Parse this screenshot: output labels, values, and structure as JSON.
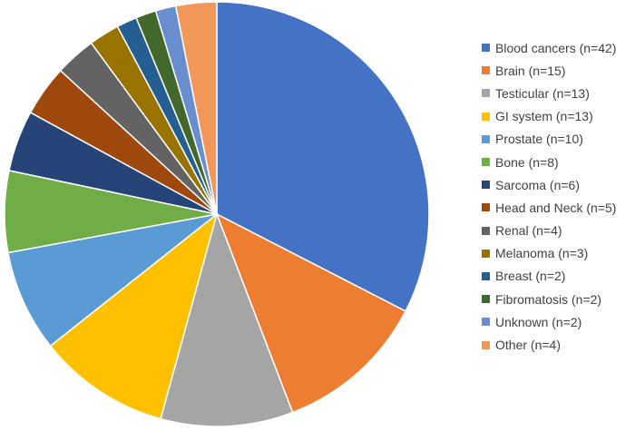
{
  "chart_data": {
    "type": "pie",
    "title": "",
    "legend_position": "right",
    "slices": [
      {
        "label": "Blood cancers (n=42)",
        "value": 42,
        "color": "#4472C4"
      },
      {
        "label": "Brain (n=15)",
        "value": 15,
        "color": "#ED7D31"
      },
      {
        "label": "Testicular (n=13)",
        "value": 13,
        "color": "#A5A5A5"
      },
      {
        "label": "GI system (n=13)",
        "value": 13,
        "color": "#FFC000"
      },
      {
        "label": "Prostate (n=10)",
        "value": 10,
        "color": "#5B9BD5"
      },
      {
        "label": "Bone (n=8)",
        "value": 8,
        "color": "#70AD47"
      },
      {
        "label": "Sarcoma (n=6)",
        "value": 6,
        "color": "#264478"
      },
      {
        "label": "Head and Neck (n=5)",
        "value": 5,
        "color": "#9E480E"
      },
      {
        "label": "Renal (n=4)",
        "value": 4,
        "color": "#636363"
      },
      {
        "label": "Melanoma (n=3)",
        "value": 3,
        "color": "#997300"
      },
      {
        "label": "Breast (n=2)",
        "value": 2,
        "color": "#255E91"
      },
      {
        "label": "Fibromatosis (n=2)",
        "value": 2,
        "color": "#43682B"
      },
      {
        "label": "Unknown (n=2)",
        "value": 2,
        "color": "#698ED0"
      },
      {
        "label": "Other (n=4)",
        "value": 4,
        "color": "#F1975A"
      }
    ]
  }
}
